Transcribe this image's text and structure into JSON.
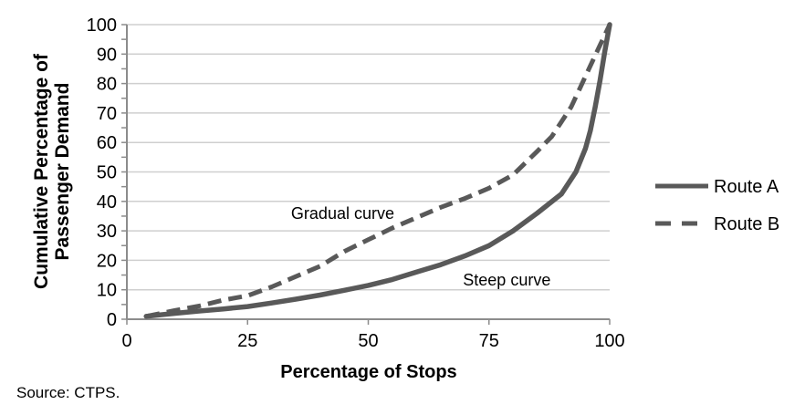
{
  "figure": {
    "source_note": "Source: CTPS."
  },
  "chart_data": {
    "type": "line",
    "title": "",
    "xlabel": "Percentage of Stops",
    "ylabel_lines": [
      "Cumulative Percentage of",
      "Passenger Demand"
    ],
    "xlim": [
      0,
      100
    ],
    "ylim": [
      0,
      100
    ],
    "xticks": [
      0,
      25,
      50,
      75,
      100
    ],
    "yticks": [
      0,
      10,
      20,
      30,
      40,
      50,
      60,
      70,
      80,
      90,
      100
    ],
    "y_minor_tick_step": 5,
    "grid": "horizontal-major",
    "legend_position": "right",
    "colors": {
      "line": "#595959",
      "grid": "#cfcfcf",
      "axis": "#8c8c8c",
      "text": "#000000",
      "background": "#ffffff"
    },
    "series": [
      {
        "name": "Route A",
        "line_style": "solid",
        "annotation": "Steep curve",
        "annotation_xy": [
          78.7,
          11.5
        ],
        "points": [
          [
            4,
            1
          ],
          [
            10,
            2
          ],
          [
            15,
            2.8
          ],
          [
            20,
            3.5
          ],
          [
            25,
            4.3
          ],
          [
            30,
            5.5
          ],
          [
            35,
            6.8
          ],
          [
            40,
            8.2
          ],
          [
            45,
            9.8
          ],
          [
            50,
            11.5
          ],
          [
            55,
            13.5
          ],
          [
            60,
            16
          ],
          [
            65,
            18.5
          ],
          [
            70,
            21.5
          ],
          [
            75,
            25
          ],
          [
            80,
            30
          ],
          [
            85,
            36
          ],
          [
            90,
            42.5
          ],
          [
            93,
            50
          ],
          [
            95,
            58
          ],
          [
            96,
            64
          ],
          [
            97,
            72
          ],
          [
            98,
            81
          ],
          [
            99,
            91
          ],
          [
            100,
            100
          ]
        ]
      },
      {
        "name": "Route B",
        "line_style": "dashed",
        "annotation": "Gradual curve",
        "annotation_xy": [
          44.7,
          34
        ],
        "points": [
          [
            4,
            1
          ],
          [
            10,
            3
          ],
          [
            15,
            4.5
          ],
          [
            20,
            6.5
          ],
          [
            25,
            8
          ],
          [
            30,
            11
          ],
          [
            35,
            14.5
          ],
          [
            40,
            18
          ],
          [
            45,
            23
          ],
          [
            50,
            27
          ],
          [
            55,
            31
          ],
          [
            60,
            34.5
          ],
          [
            65,
            38
          ],
          [
            70,
            41
          ],
          [
            75,
            44.5
          ],
          [
            80,
            49
          ],
          [
            85,
            57
          ],
          [
            88,
            62
          ],
          [
            90,
            67
          ],
          [
            92,
            72
          ],
          [
            94,
            79
          ],
          [
            96,
            86
          ],
          [
            98,
            93
          ],
          [
            100,
            100
          ]
        ]
      }
    ]
  }
}
